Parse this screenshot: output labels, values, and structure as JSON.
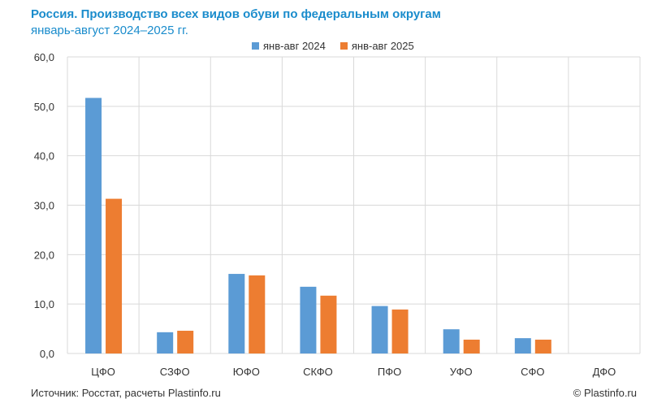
{
  "chart_data": {
    "type": "bar",
    "title": "Россия. Производство всех видов обуви по федеральным округам",
    "subtitle": "январь-август 2024–2025 гг.",
    "categories": [
      "ЦФО",
      "СЗФО",
      "ЮФО",
      "СКФО",
      "ПФО",
      "УФО",
      "СФО",
      "ДФО"
    ],
    "series": [
      {
        "name": "янв-авг 2024",
        "color": "#5b9bd5",
        "values": [
          51.7,
          4.3,
          16.1,
          13.5,
          9.6,
          4.9,
          3.1,
          0
        ]
      },
      {
        "name": "янв-авг 2025",
        "color": "#ed7d31",
        "values": [
          31.3,
          4.6,
          15.8,
          11.7,
          8.9,
          2.8,
          2.8,
          0
        ]
      }
    ],
    "yticks": [
      "0,0",
      "10,0",
      "20,0",
      "30,0",
      "40,0",
      "50,0",
      "60,0"
    ],
    "ylim": [
      0,
      60
    ],
    "grid": true,
    "legend": "top-center",
    "xlabel": "",
    "ylabel": ""
  },
  "footer": {
    "source": "Источник: Росстат, расчеты  Plastinfo.ru",
    "copyright": "© Plastinfo.ru"
  }
}
